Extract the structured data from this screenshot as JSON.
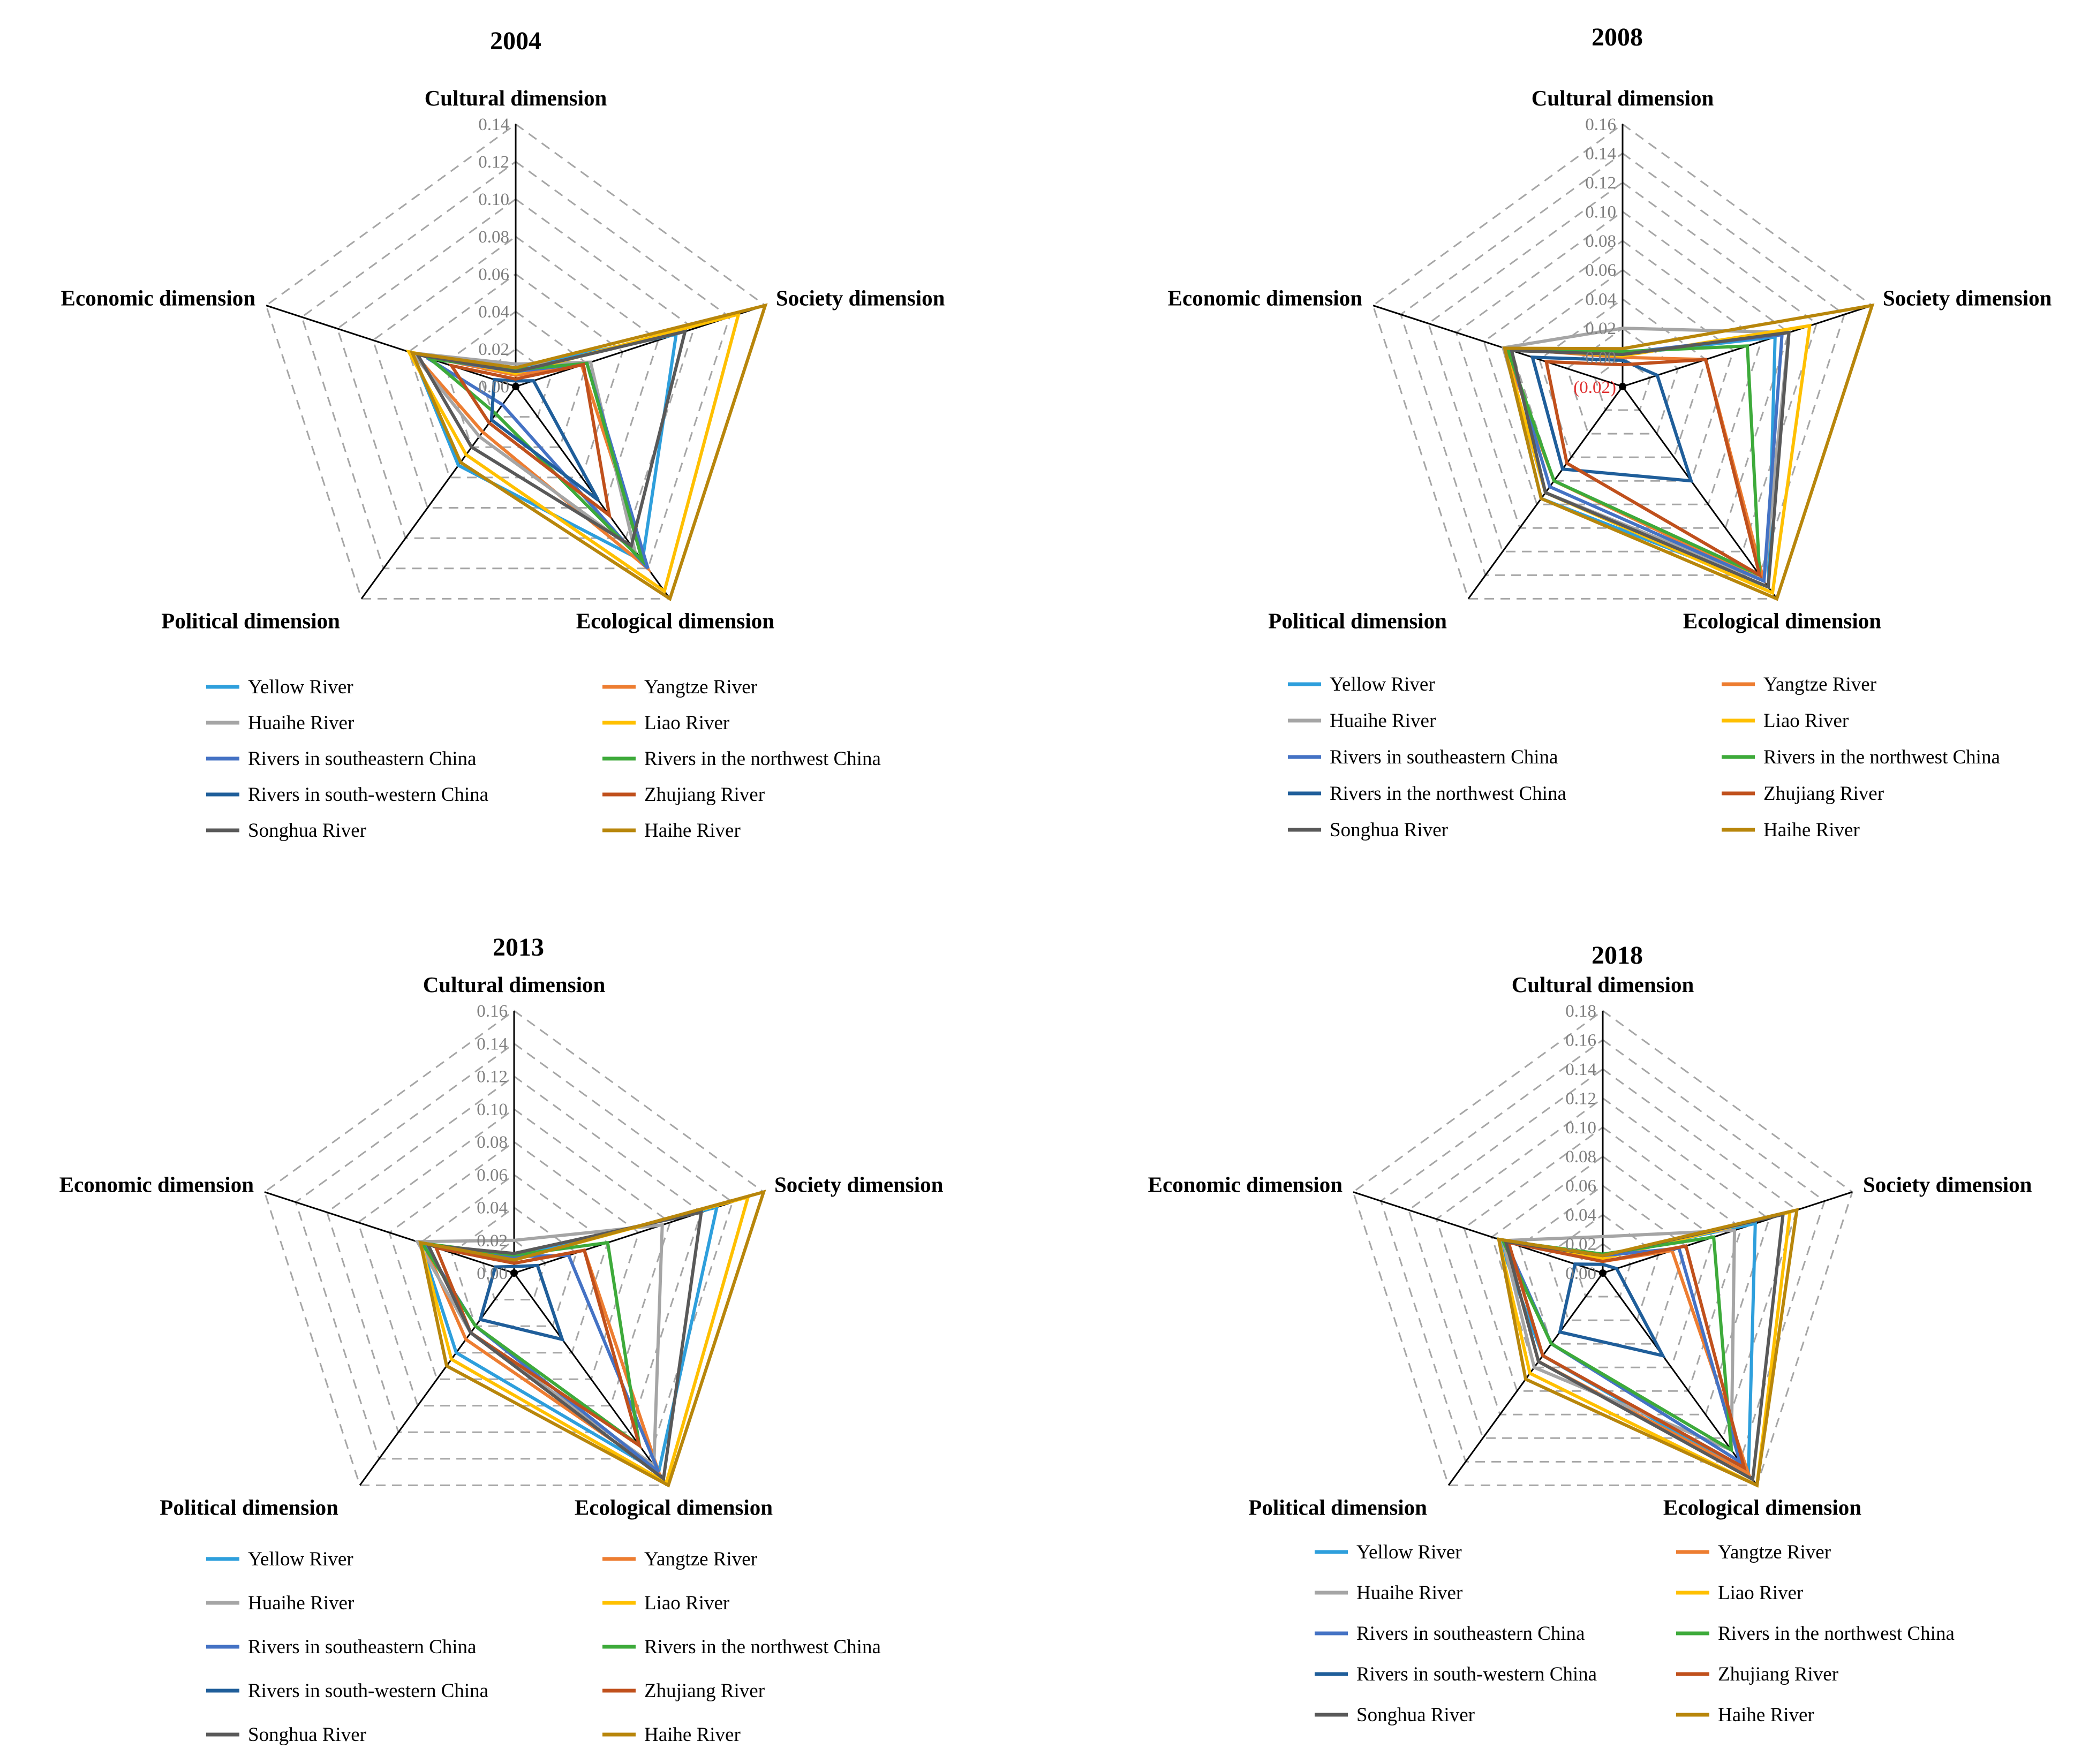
{
  "chart_data": [
    {
      "type": "radar",
      "title": "2004",
      "axes": [
        "Cultural dimension",
        "Society dimension",
        "Ecological dimension",
        "Political dimension",
        "Economic dimension"
      ],
      "rmin": 0,
      "rmax": 0.14,
      "ticks": [
        "0.00",
        "0.02",
        "0.04",
        "0.06",
        "0.08",
        "0.10",
        "0.12",
        "0.14"
      ],
      "tick_values": [
        0.0,
        0.02,
        0.04,
        0.06,
        0.08,
        0.1,
        0.12,
        0.14
      ],
      "series": [
        {
          "name": "Yellow River",
          "color": "#2e9fdc",
          "values": [
            0.01,
            0.09,
            0.115,
            0.052,
            0.058
          ]
        },
        {
          "name": "Yangtze River",
          "color": "#ed7d31",
          "values": [
            0.006,
            0.037,
            0.12,
            0.03,
            0.057
          ]
        },
        {
          "name": "Huaihe River",
          "color": "#a5a5a5",
          "values": [
            0.012,
            0.042,
            0.108,
            0.033,
            0.058
          ]
        },
        {
          "name": "Liao River",
          "color": "#ffc000",
          "values": [
            0.007,
            0.125,
            0.135,
            0.045,
            0.06
          ]
        },
        {
          "name": "Rivers in southeastern China",
          "color": "#4472c4",
          "values": [
            0.008,
            0.04,
            0.12,
            0.012,
            0.05
          ]
        },
        {
          "name": "Rivers in the northwest China",
          "color": "#3daa3a",
          "values": [
            0.009,
            0.04,
            0.115,
            0.018,
            0.048
          ]
        },
        {
          "name": "Rivers in south-western China",
          "color": "#1f5e9a",
          "values": [
            0.003,
            0.01,
            0.075,
            0.022,
            0.012
          ]
        },
        {
          "name": "Zhujiang River",
          "color": "#c0501c",
          "values": [
            0.004,
            0.038,
            0.085,
            0.024,
            0.036
          ]
        },
        {
          "name": "Songhua River",
          "color": "#595959",
          "values": [
            0.008,
            0.095,
            0.105,
            0.04,
            0.055
          ]
        },
        {
          "name": "Haihe River",
          "color": "#b8860b",
          "values": [
            0.01,
            0.14,
            0.14,
            0.05,
            0.058
          ]
        }
      ]
    },
    {
      "type": "radar",
      "title": "2008",
      "axes": [
        "Cultural dimension",
        "Society dimension",
        "Ecological dimension",
        "Political dimension",
        "Economic dimension"
      ],
      "rmin": -0.02,
      "rmax": 0.16,
      "ticks": [
        "(0.02)",
        "0.00",
        "0.02",
        "0.04",
        "0.06",
        "0.08",
        "0.10",
        "0.12",
        "0.14",
        "0.16"
      ],
      "tick_values": [
        -0.02,
        0.0,
        0.02,
        0.04,
        0.06,
        0.08,
        0.1,
        0.12,
        0.14,
        0.16
      ],
      "series": [
        {
          "name": "Yellow River",
          "color": "#2e9fdc",
          "values": [
            0.002,
            0.09,
            0.15,
            0.075,
            0.065
          ]
        },
        {
          "name": "Yangtze River",
          "color": "#ed7d31",
          "values": [
            0.0,
            0.04,
            0.145,
            0.06,
            0.065
          ]
        },
        {
          "name": "Huaihe River",
          "color": "#a5a5a5",
          "values": [
            0.02,
            0.1,
            0.145,
            0.07,
            0.066
          ]
        },
        {
          "name": "Liao River",
          "color": "#ffc000",
          "values": [
            0.001,
            0.115,
            0.155,
            0.07,
            0.065
          ]
        },
        {
          "name": "Rivers in southeastern China",
          "color": "#4472c4",
          "values": [
            0.003,
            0.095,
            0.145,
            0.065,
            0.062
          ]
        },
        {
          "name": "Rivers in the northwest China",
          "color": "#3daa3a",
          "values": [
            0.004,
            0.07,
            0.14,
            0.06,
            0.063
          ]
        },
        {
          "name": "Rivers in the northwest China",
          "color": "#1f5e9a",
          "values": [
            -0.002,
            0.005,
            0.06,
            0.05,
            0.045
          ]
        },
        {
          "name": "Zhujiang River",
          "color": "#c0501c",
          "values": [
            -0.005,
            0.04,
            0.14,
            0.045,
            0.035
          ]
        },
        {
          "name": "Songhua River",
          "color": "#595959",
          "values": [
            0.002,
            0.1,
            0.15,
            0.07,
            0.06
          ]
        },
        {
          "name": "Haihe River",
          "color": "#b8860b",
          "values": [
            0.006,
            0.16,
            0.16,
            0.075,
            0.065
          ]
        }
      ]
    },
    {
      "type": "radar",
      "title": "2013",
      "axes": [
        "Cultural dimension",
        "Society dimension",
        "Ecological dimension",
        "Political dimension",
        "Economic dimension"
      ],
      "rmin": 0,
      "rmax": 0.16,
      "ticks": [
        "0.00",
        "0.02",
        "0.04",
        "0.06",
        "0.08",
        "0.10",
        "0.12",
        "0.14",
        "0.16"
      ],
      "tick_values": [
        0.0,
        0.02,
        0.04,
        0.06,
        0.08,
        0.1,
        0.12,
        0.14,
        0.16
      ],
      "series": [
        {
          "name": "Yellow River",
          "color": "#2e9fdc",
          "values": [
            0.01,
            0.13,
            0.15,
            0.06,
            0.06
          ]
        },
        {
          "name": "Yangtze River",
          "color": "#ed7d31",
          "values": [
            0.006,
            0.045,
            0.15,
            0.05,
            0.058
          ]
        },
        {
          "name": "Huaihe River",
          "color": "#a5a5a5",
          "values": [
            0.02,
            0.095,
            0.145,
            0.045,
            0.062
          ]
        },
        {
          "name": "Liao River",
          "color": "#ffc000",
          "values": [
            0.008,
            0.15,
            0.158,
            0.065,
            0.06
          ]
        },
        {
          "name": "Rivers in southeastern China",
          "color": "#4472c4",
          "values": [
            0.01,
            0.035,
            0.15,
            0.04,
            0.058
          ]
        },
        {
          "name": "Rivers in the northwest China",
          "color": "#3daa3a",
          "values": [
            0.011,
            0.06,
            0.13,
            0.04,
            0.059
          ]
        },
        {
          "name": "Rivers in south-western China",
          "color": "#1f5e9a",
          "values": [
            0.004,
            0.015,
            0.05,
            0.035,
            0.012
          ]
        },
        {
          "name": "Zhujiang River",
          "color": "#c0501c",
          "values": [
            0.006,
            0.045,
            0.13,
            0.045,
            0.05
          ]
        },
        {
          "name": "Songhua River",
          "color": "#595959",
          "values": [
            0.012,
            0.12,
            0.155,
            0.045,
            0.055
          ]
        },
        {
          "name": "Haihe River",
          "color": "#b8860b",
          "values": [
            0.008,
            0.16,
            0.16,
            0.07,
            0.06
          ]
        }
      ]
    },
    {
      "type": "radar",
      "title": "2018",
      "axes": [
        "Cultural dimension",
        "Society dimension",
        "Ecological dimension",
        "Political dimension",
        "Economic dimension"
      ],
      "rmin": 0,
      "rmax": 0.18,
      "ticks": [
        "0.00",
        "0.02",
        "0.04",
        "0.06",
        "0.08",
        "0.10",
        "0.12",
        "0.14",
        "0.16",
        "0.18"
      ],
      "tick_values": [
        0.0,
        0.02,
        0.04,
        0.06,
        0.08,
        0.1,
        0.12,
        0.14,
        0.16,
        0.18
      ],
      "series": [
        {
          "name": "Yellow River",
          "color": "#2e9fdc",
          "values": [
            0.012,
            0.11,
            0.17,
            0.07,
            0.075
          ]
        },
        {
          "name": "Yangtze River",
          "color": "#ed7d31",
          "values": [
            0.008,
            0.05,
            0.17,
            0.075,
            0.07
          ]
        },
        {
          "name": "Huaihe River",
          "color": "#a5a5a5",
          "values": [
            0.025,
            0.095,
            0.15,
            0.08,
            0.072
          ]
        },
        {
          "name": "Liao River",
          "color": "#ffc000",
          "values": [
            0.01,
            0.135,
            0.18,
            0.085,
            0.075
          ]
        },
        {
          "name": "Rivers in southeastern China",
          "color": "#4472c4",
          "values": [
            0.012,
            0.055,
            0.16,
            0.06,
            0.07
          ]
        },
        {
          "name": "Rivers in the northwest China",
          "color": "#3daa3a",
          "values": [
            0.013,
            0.08,
            0.15,
            0.06,
            0.072
          ]
        },
        {
          "name": "Rivers in south-western China",
          "color": "#1f5e9a",
          "values": [
            0.006,
            0.01,
            0.07,
            0.05,
            0.02
          ]
        },
        {
          "name": "Zhujiang River",
          "color": "#c0501c",
          "values": [
            0.008,
            0.06,
            0.165,
            0.07,
            0.068
          ]
        },
        {
          "name": "Songhua River",
          "color": "#595959",
          "values": [
            0.012,
            0.13,
            0.175,
            0.075,
            0.07
          ]
        },
        {
          "name": "Haihe River",
          "color": "#b8860b",
          "values": [
            0.012,
            0.14,
            0.18,
            0.09,
            0.075
          ]
        }
      ]
    }
  ]
}
